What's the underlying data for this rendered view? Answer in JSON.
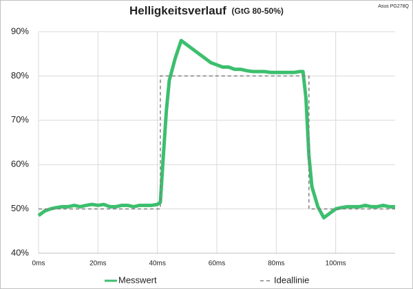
{
  "chart_data": {
    "type": "line",
    "title": "Helligkeitsverlauf",
    "subtitle": "(GtG 80-50%)",
    "annotation": "Asus PG278Q",
    "xlim": [
      0,
      120
    ],
    "xticks": [
      {
        "value": 0,
        "label": "0ms"
      },
      {
        "value": 20,
        "label": "20ms"
      },
      {
        "value": 40,
        "label": "40ms"
      },
      {
        "value": 60,
        "label": "60ms"
      },
      {
        "value": 80,
        "label": "80ms"
      },
      {
        "value": 100,
        "label": "100ms"
      }
    ],
    "ylim": [
      40,
      90
    ],
    "yticks": [
      {
        "value": 40,
        "label": "40%"
      },
      {
        "value": 50,
        "label": "50%"
      },
      {
        "value": 60,
        "label": "60%"
      },
      {
        "value": 70,
        "label": "70%"
      },
      {
        "value": 80,
        "label": "80%"
      },
      {
        "value": 90,
        "label": "90%"
      }
    ],
    "grid": true,
    "legend": "bottom",
    "series": [
      {
        "name": "Messwert",
        "color": "#3cbf6e",
        "dash": false,
        "x": [
          0,
          2,
          4,
          6,
          8,
          10,
          12,
          14,
          16,
          18,
          20,
          22,
          24,
          26,
          28,
          30,
          32,
          34,
          36,
          38,
          40,
          41,
          42,
          43,
          44,
          46,
          48,
          50,
          52,
          54,
          56,
          58,
          60,
          62,
          64,
          66,
          68,
          70,
          72,
          74,
          76,
          78,
          80,
          82,
          84,
          86,
          88,
          89,
          90,
          91,
          92,
          94,
          96,
          98,
          100,
          102,
          104,
          106,
          108,
          110,
          112,
          114,
          116,
          118,
          120
        ],
        "values": [
          48.5,
          49.5,
          50,
          50.3,
          50.5,
          50.5,
          50.8,
          50.5,
          50.8,
          51,
          50.8,
          51,
          50.5,
          50.5,
          50.8,
          50.8,
          50.5,
          50.8,
          50.8,
          50.8,
          51,
          51.5,
          62,
          72,
          79,
          84,
          88,
          87,
          86,
          85,
          84,
          83,
          82.5,
          82,
          82,
          81.5,
          81.5,
          81.2,
          81,
          81,
          81,
          80.8,
          80.8,
          80.8,
          80.8,
          80.8,
          81,
          81,
          75,
          62,
          55,
          50.5,
          48,
          49,
          50,
          50.3,
          50.5,
          50.5,
          50.5,
          50.8,
          50.5,
          50.5,
          50.8,
          50.5,
          50.5
        ]
      },
      {
        "name": "Ideallinie",
        "color": "#808080",
        "dash": true,
        "x": [
          0,
          41,
          41,
          91,
          91,
          120
        ],
        "values": [
          50,
          50,
          80,
          80,
          50,
          50
        ]
      }
    ]
  }
}
